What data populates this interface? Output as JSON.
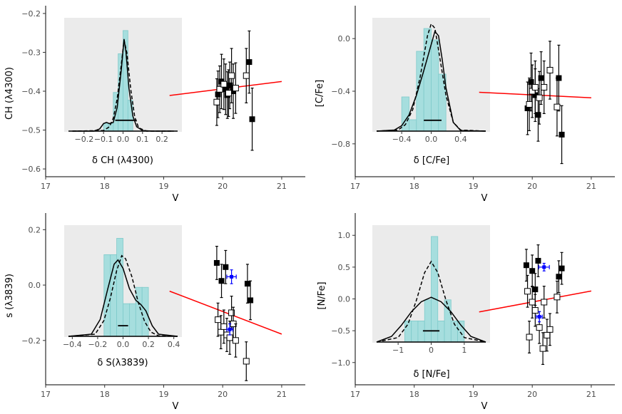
{
  "chart_data": [
    {
      "type": "scatter",
      "xlabel": "V",
      "ylabel": "CH (λ4300)",
      "xlim": [
        17.0,
        21.4
      ],
      "ylim": [
        -0.62,
        -0.18
      ],
      "xticks": [
        17,
        18,
        19,
        20,
        21
      ],
      "yticks": [
        -0.2,
        -0.3,
        -0.4,
        -0.5,
        -0.6
      ],
      "ytick_labels": [
        "−0.2",
        "−0.3",
        "−0.4",
        "−0.5",
        "−0.6"
      ],
      "fit_line": {
        "x": [
          19.1,
          21.0
        ],
        "y": [
          -0.411,
          -0.375
        ],
        "color": "#ff0000"
      },
      "series": [
        {
          "marker": "filled-square",
          "color": "#000000",
          "points": [
            {
              "x": 19.92,
              "y": -0.408,
              "err": 0.06
            },
            {
              "x": 19.98,
              "y": -0.375,
              "err": 0.07
            },
            {
              "x": 20.05,
              "y": -0.395,
              "err": 0.065
            },
            {
              "x": 20.08,
              "y": -0.41,
              "err": 0.06
            },
            {
              "x": 20.12,
              "y": -0.385,
              "err": 0.06
            },
            {
              "x": 20.18,
              "y": -0.4,
              "err": 0.07
            },
            {
              "x": 20.45,
              "y": -0.325,
              "err": 0.08
            },
            {
              "x": 20.5,
              "y": -0.472,
              "err": 0.08
            }
          ]
        },
        {
          "marker": "open-square",
          "color": "#000000",
          "points": [
            {
              "x": 19.9,
              "y": -0.428,
              "err": 0.06
            },
            {
              "x": 19.95,
              "y": -0.395,
              "err": 0.06
            },
            {
              "x": 20.02,
              "y": -0.382,
              "err": 0.065
            },
            {
              "x": 20.1,
              "y": -0.405,
              "err": 0.06
            },
            {
              "x": 20.15,
              "y": -0.36,
              "err": 0.07
            },
            {
              "x": 20.22,
              "y": -0.392,
              "err": 0.065
            },
            {
              "x": 20.4,
              "y": -0.36,
              "err": 0.07
            }
          ]
        }
      ],
      "inset": {
        "xlabel": "δ CH (λ4300)",
        "xlim": [
          -0.28,
          0.28
        ],
        "xticks": [
          -0.2,
          -0.1,
          0.0,
          0.1,
          0.2
        ],
        "xtick_labels": [
          "−0.2",
          "−0.1",
          "0.0",
          "0.1",
          "0.2"
        ],
        "bin_width": 0.025,
        "bin_edges_start": -0.1,
        "histogram": [
          1,
          1,
          5,
          10,
          13,
          4
        ],
        "hist_max": 14,
        "solid_curve": [
          [
            -0.26,
            0.0
          ],
          [
            -0.15,
            0.0
          ],
          [
            -0.12,
            0.02
          ],
          [
            -0.1,
            0.07
          ],
          [
            -0.085,
            0.08
          ],
          [
            -0.07,
            0.07
          ],
          [
            -0.05,
            0.08
          ],
          [
            -0.03,
            0.22
          ],
          [
            -0.01,
            0.55
          ],
          [
            0.005,
            0.85
          ],
          [
            0.015,
            0.73
          ],
          [
            0.03,
            0.4
          ],
          [
            0.05,
            0.14
          ],
          [
            0.07,
            0.04
          ],
          [
            0.1,
            0.005
          ],
          [
            0.15,
            0.0
          ],
          [
            0.26,
            0.0
          ]
        ],
        "dashed_curve": [
          [
            -0.26,
            0.0
          ],
          [
            -0.1,
            0.005
          ],
          [
            -0.07,
            0.04
          ],
          [
            -0.05,
            0.12
          ],
          [
            -0.03,
            0.3
          ],
          [
            -0.01,
            0.6
          ],
          [
            0.005,
            0.84
          ],
          [
            0.02,
            0.72
          ],
          [
            0.04,
            0.38
          ],
          [
            0.06,
            0.13
          ],
          [
            0.08,
            0.03
          ],
          [
            0.12,
            0.0
          ],
          [
            0.26,
            0.0
          ]
        ],
        "error_bar": [
          -0.04,
          0.07
        ]
      }
    },
    {
      "type": "scatter",
      "xlabel": "V",
      "ylabel": "[C/Fe]",
      "xlim": [
        17.0,
        21.4
      ],
      "ylim": [
        -1.05,
        0.25
      ],
      "xticks": [
        17,
        18,
        19,
        20,
        21
      ],
      "yticks": [
        0.0,
        -0.4,
        -0.8
      ],
      "ytick_labels": [
        "0.0",
        "−0.4",
        "−0.8"
      ],
      "fit_line": {
        "x": [
          19.1,
          21.0
        ],
        "y": [
          -0.408,
          -0.45
        ],
        "color": "#ff0000"
      },
      "series": [
        {
          "marker": "filled-square",
          "color": "#000000",
          "points": [
            {
              "x": 19.92,
              "y": -0.53,
              "err": 0.2
            },
            {
              "x": 19.98,
              "y": -0.33,
              "err": 0.22
            },
            {
              "x": 20.05,
              "y": -0.43,
              "err": 0.2
            },
            {
              "x": 20.1,
              "y": -0.58,
              "err": 0.2
            },
            {
              "x": 20.15,
              "y": -0.3,
              "err": 0.2
            },
            {
              "x": 20.45,
              "y": -0.3,
              "err": 0.25
            },
            {
              "x": 20.5,
              "y": -0.73,
              "err": 0.22
            }
          ]
        },
        {
          "marker": "open-square",
          "color": "#000000",
          "points": [
            {
              "x": 19.95,
              "y": -0.5,
              "err": 0.2
            },
            {
              "x": 20.0,
              "y": -0.4,
              "err": 0.2
            },
            {
              "x": 20.05,
              "y": -0.37,
              "err": 0.2
            },
            {
              "x": 20.12,
              "y": -0.45,
              "err": 0.2
            },
            {
              "x": 20.2,
              "y": -0.37,
              "err": 0.2
            },
            {
              "x": 20.3,
              "y": -0.24,
              "err": 0.22
            },
            {
              "x": 20.42,
              "y": -0.52,
              "err": 0.22
            }
          ]
        }
      ],
      "inset": {
        "xlabel": "δ [C/Fe]",
        "xlim": [
          -0.74,
          0.74
        ],
        "xticks": [
          -0.4,
          0.0,
          0.4
        ],
        "xtick_labels": [
          "−0.4",
          "0.0",
          "0.4"
        ],
        "bin_width": 0.1,
        "bin_edges_start": -0.4,
        "histogram": [
          3,
          1,
          7,
          9,
          8,
          5
        ],
        "hist_max": 9.5,
        "solid_curve": [
          [
            -0.74,
            0.0
          ],
          [
            -0.5,
            0.01
          ],
          [
            -0.4,
            0.05
          ],
          [
            -0.3,
            0.15
          ],
          [
            -0.2,
            0.33
          ],
          [
            -0.1,
            0.56
          ],
          [
            0.0,
            0.8
          ],
          [
            0.05,
            0.92
          ],
          [
            0.1,
            0.88
          ],
          [
            0.15,
            0.66
          ],
          [
            0.2,
            0.4
          ],
          [
            0.3,
            0.08
          ],
          [
            0.4,
            0.005
          ],
          [
            0.74,
            0.0
          ]
        ],
        "dashed_curve": [
          [
            -0.74,
            0.0
          ],
          [
            -0.45,
            0.01
          ],
          [
            -0.35,
            0.06
          ],
          [
            -0.25,
            0.2
          ],
          [
            -0.15,
            0.5
          ],
          [
            -0.05,
            0.88
          ],
          [
            0.0,
            0.99
          ],
          [
            0.05,
            0.95
          ],
          [
            0.1,
            0.75
          ],
          [
            0.2,
            0.33
          ],
          [
            0.3,
            0.08
          ],
          [
            0.4,
            0.01
          ],
          [
            0.74,
            0.0
          ]
        ],
        "error_bar": [
          -0.1,
          0.14
        ]
      }
    },
    {
      "type": "scatter",
      "xlabel": "V",
      "ylabel": "s (λ3839)",
      "xlim": [
        17.0,
        21.4
      ],
      "ylim": [
        -0.36,
        0.26
      ],
      "xticks": [
        17,
        18,
        19,
        20,
        21
      ],
      "yticks": [
        0.2,
        0.0,
        -0.2
      ],
      "ytick_labels": [
        "0.2",
        "0.0",
        "−0.2"
      ],
      "fit_line": {
        "x": [
          19.1,
          21.0
        ],
        "y": [
          -0.022,
          -0.177
        ],
        "color": "#ff0000"
      },
      "series": [
        {
          "marker": "filled-square",
          "color": "#000000",
          "points": [
            {
              "x": 19.9,
              "y": 0.08,
              "err": 0.06
            },
            {
              "x": 19.98,
              "y": 0.015,
              "err": 0.06
            },
            {
              "x": 20.05,
              "y": 0.065,
              "err": 0.06
            },
            {
              "x": 20.42,
              "y": 0.005,
              "err": 0.07
            },
            {
              "x": 20.47,
              "y": -0.055,
              "err": 0.07
            }
          ]
        },
        {
          "marker": "open-square",
          "color": "#000000",
          "points": [
            {
              "x": 19.92,
              "y": -0.125,
              "err": 0.06
            },
            {
              "x": 19.97,
              "y": -0.17,
              "err": 0.06
            },
            {
              "x": 20.02,
              "y": -0.15,
              "err": 0.06
            },
            {
              "x": 20.07,
              "y": -0.18,
              "err": 0.06
            },
            {
              "x": 20.12,
              "y": -0.19,
              "err": 0.06
            },
            {
              "x": 20.15,
              "y": -0.1,
              "err": 0.06
            },
            {
              "x": 20.18,
              "y": -0.14,
              "err": 0.06
            },
            {
              "x": 20.22,
              "y": -0.2,
              "err": 0.06
            },
            {
              "x": 20.4,
              "y": -0.275,
              "err": 0.07
            }
          ]
        },
        {
          "marker": "blue-cross",
          "color": "#0000ff",
          "points": [
            {
              "x": 20.15,
              "y": 0.03,
              "err": 0.025,
              "xerr": 0.08
            },
            {
              "x": 20.12,
              "y": -0.16,
              "err": 0.02,
              "xerr": 0.05
            }
          ]
        }
      ],
      "inset": {
        "xlabel": "δ S(λ3839)",
        "xlim": [
          -0.43,
          0.43
        ],
        "xticks": [
          -0.4,
          -0.2,
          0.0,
          0.2,
          0.4
        ],
        "xtick_labels": [
          "−0.4",
          "−0.2",
          "0.0",
          "0.2",
          "0.4"
        ],
        "bin_width": 0.05,
        "bin_edges_start": -0.15,
        "histogram": [
          5,
          5,
          6,
          2,
          2,
          3,
          3
        ],
        "hist_max": 6.5,
        "solid_curve": [
          [
            -0.43,
            0.0
          ],
          [
            -0.25,
            0.02
          ],
          [
            -0.18,
            0.16
          ],
          [
            -0.12,
            0.45
          ],
          [
            -0.07,
            0.68
          ],
          [
            -0.04,
            0.72
          ],
          [
            0.0,
            0.64
          ],
          [
            0.05,
            0.45
          ],
          [
            0.1,
            0.34
          ],
          [
            0.14,
            0.3
          ],
          [
            0.18,
            0.24
          ],
          [
            0.23,
            0.1
          ],
          [
            0.28,
            0.02
          ],
          [
            0.43,
            0.0
          ]
        ],
        "dashed_curve": [
          [
            -0.43,
            0.0
          ],
          [
            -0.22,
            0.02
          ],
          [
            -0.15,
            0.15
          ],
          [
            -0.1,
            0.36
          ],
          [
            -0.05,
            0.62
          ],
          [
            -0.01,
            0.76
          ],
          [
            0.02,
            0.73
          ],
          [
            0.07,
            0.56
          ],
          [
            0.12,
            0.32
          ],
          [
            0.17,
            0.14
          ],
          [
            0.22,
            0.04
          ],
          [
            0.28,
            0.005
          ],
          [
            0.43,
            0.0
          ]
        ],
        "error_bar": [
          -0.04,
          0.04
        ]
      }
    },
    {
      "type": "scatter",
      "xlabel": "V",
      "ylabel": "[N/Fe]",
      "xlim": [
        17.0,
        21.4
      ],
      "ylim": [
        -1.35,
        1.35
      ],
      "xticks": [
        17,
        18,
        19,
        20,
        21
      ],
      "yticks": [
        1.0,
        0.5,
        0.0,
        -0.5,
        -1.0
      ],
      "ytick_labels": [
        "1.0",
        "0.5",
        "0.0",
        "−0.5",
        "−1.0"
      ],
      "fit_line": {
        "x": [
          19.1,
          21.0
        ],
        "y": [
          -0.205,
          0.125
        ],
        "color": "#ff0000"
      },
      "series": [
        {
          "marker": "filled-square",
          "color": "#000000",
          "points": [
            {
              "x": 19.9,
              "y": 0.53,
              "err": 0.25
            },
            {
              "x": 20.0,
              "y": 0.44,
              "err": 0.25
            },
            {
              "x": 20.05,
              "y": 0.15,
              "err": 0.25
            },
            {
              "x": 20.1,
              "y": 0.6,
              "err": 0.25
            },
            {
              "x": 20.45,
              "y": 0.35,
              "err": 0.25
            },
            {
              "x": 20.5,
              "y": 0.48,
              "err": 0.25
            }
          ]
        },
        {
          "marker": "open-square",
          "color": "#000000",
          "points": [
            {
              "x": 19.92,
              "y": 0.12,
              "err": 0.25
            },
            {
              "x": 19.95,
              "y": -0.6,
              "err": 0.25
            },
            {
              "x": 20.0,
              "y": -0.05,
              "err": 0.25
            },
            {
              "x": 20.05,
              "y": -0.18,
              "err": 0.25
            },
            {
              "x": 20.12,
              "y": -0.45,
              "err": 0.25
            },
            {
              "x": 20.18,
              "y": -0.78,
              "err": 0.25
            },
            {
              "x": 20.2,
              "y": -0.05,
              "err": 0.25
            },
            {
              "x": 20.25,
              "y": -0.57,
              "err": 0.25
            },
            {
              "x": 20.3,
              "y": -0.48,
              "err": 0.25
            },
            {
              "x": 20.42,
              "y": 0.03,
              "err": 0.25
            }
          ]
        },
        {
          "marker": "blue-cross",
          "color": "#0000ff",
          "points": [
            {
              "x": 20.2,
              "y": 0.5,
              "err": 0.06,
              "xerr": 0.09
            },
            {
              "x": 20.12,
              "y": -0.28,
              "err": 0.08,
              "xerr": 0.05
            }
          ]
        }
      ],
      "inset": {
        "xlabel": "δ [N/Fe]",
        "xlim": [
          -1.65,
          1.65
        ],
        "xticks": [
          -1,
          0,
          1
        ],
        "xtick_labels": [
          "−1",
          "0",
          "1"
        ],
        "bin_width": 0.2,
        "bin_edges_start": -0.8,
        "histogram": [
          1,
          1,
          1,
          2,
          5,
          1,
          2,
          1,
          1
        ],
        "hist_max": 5.3,
        "solid_curve": [
          [
            -1.65,
            0.0
          ],
          [
            -1.2,
            0.05
          ],
          [
            -0.9,
            0.15
          ],
          [
            -0.6,
            0.27
          ],
          [
            -0.3,
            0.36
          ],
          [
            0.0,
            0.4
          ],
          [
            0.3,
            0.36
          ],
          [
            0.6,
            0.27
          ],
          [
            0.9,
            0.15
          ],
          [
            1.2,
            0.05
          ],
          [
            1.65,
            0.0
          ]
        ],
        "dashed_curve": [
          [
            -1.65,
            0.0
          ],
          [
            -1.0,
            0.04
          ],
          [
            -0.7,
            0.16
          ],
          [
            -0.45,
            0.37
          ],
          [
            -0.2,
            0.62
          ],
          [
            0.0,
            0.72
          ],
          [
            0.2,
            0.62
          ],
          [
            0.45,
            0.37
          ],
          [
            0.7,
            0.16
          ],
          [
            1.0,
            0.04
          ],
          [
            1.65,
            0.0
          ]
        ],
        "error_bar": [
          -0.25,
          0.25
        ]
      }
    }
  ]
}
